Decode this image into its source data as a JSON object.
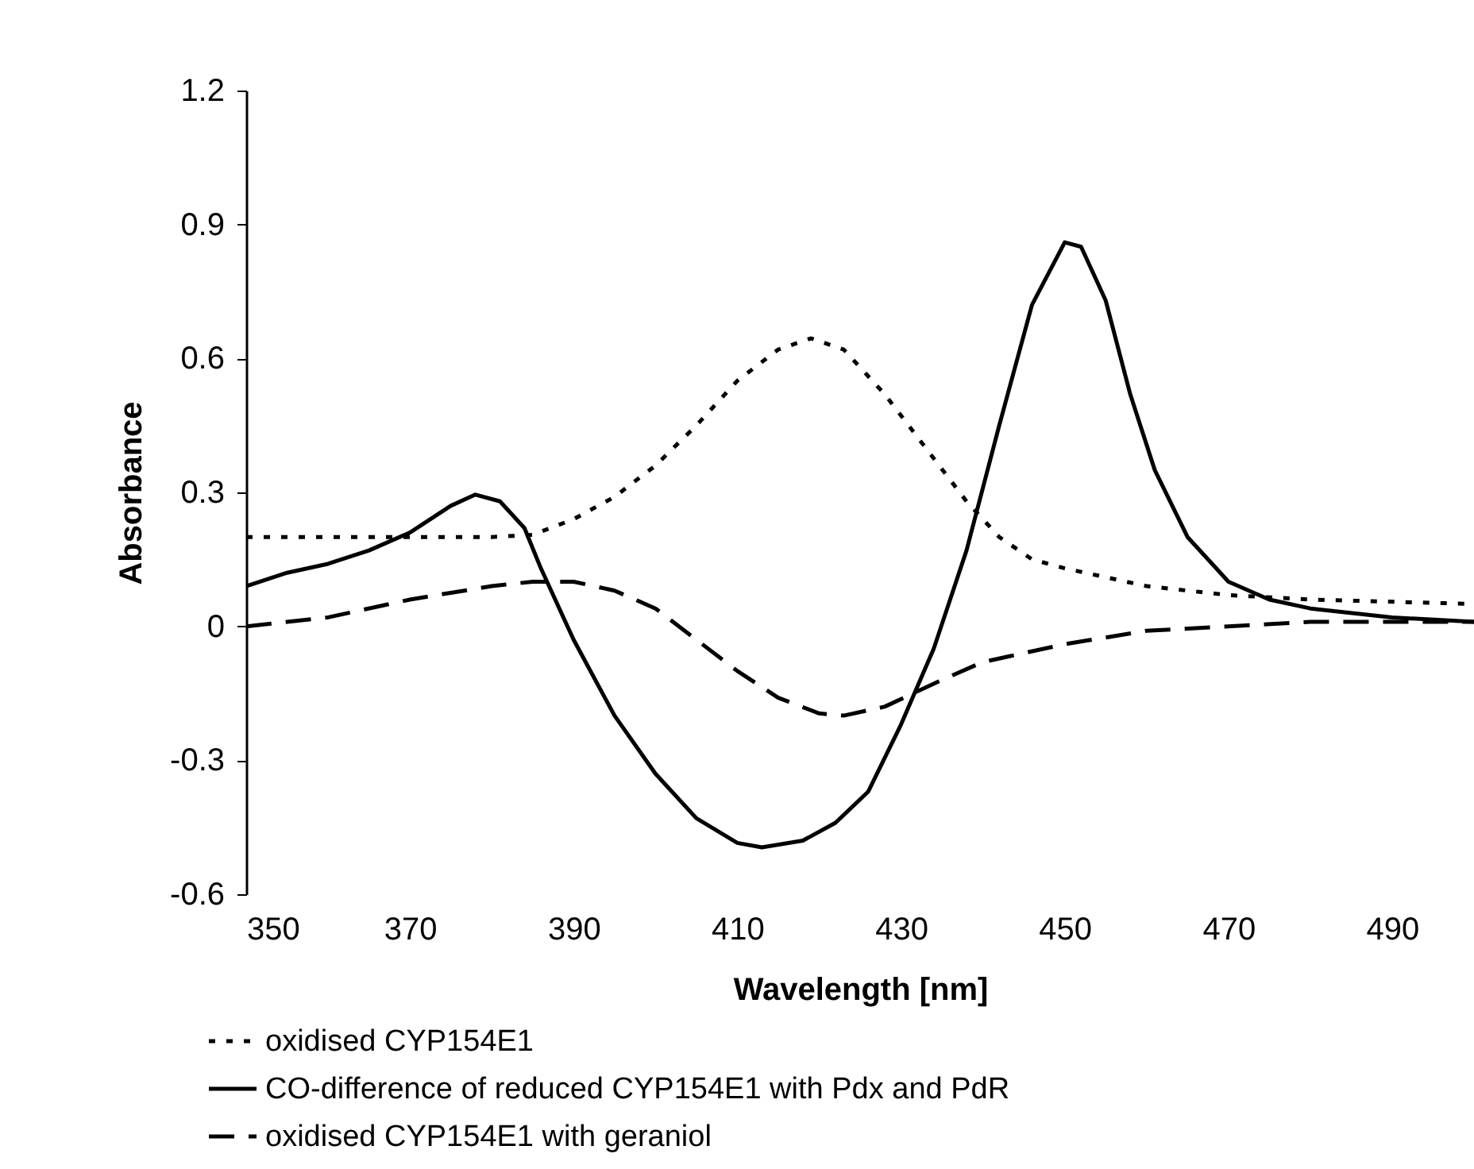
{
  "chart_data": {
    "type": "line",
    "xlabel": "Wavelength [nm]",
    "ylabel": "Absorbance",
    "xlim": [
      350,
      500
    ],
    "xticks": [
      350,
      370,
      390,
      410,
      430,
      450,
      470,
      490
    ],
    "ylim": [
      -0.6,
      1.2
    ],
    "yticks": [
      -0.6,
      -0.3,
      0,
      0.3,
      0.6,
      0.9,
      1.2
    ],
    "grid": false,
    "legend": "bottom",
    "series": [
      {
        "name": "oxidised CYP154E1",
        "color": "#000000",
        "line_style": "dotted",
        "x": [
          350,
          380,
          385,
          390,
          395,
          400,
          405,
          410,
          415,
          419,
          423,
          428,
          433,
          438,
          442,
          446,
          450,
          460,
          470,
          480,
          500
        ],
        "values": [
          0.2,
          0.2,
          0.205,
          0.24,
          0.29,
          0.36,
          0.45,
          0.55,
          0.62,
          0.645,
          0.62,
          0.52,
          0.4,
          0.28,
          0.2,
          0.15,
          0.13,
          0.09,
          0.07,
          0.06,
          0.05
        ]
      },
      {
        "name": "CO-difference of reduced CYP154E1 with Pdx and PdR",
        "color": "#000000",
        "line_style": "solid",
        "x": [
          350,
          355,
          360,
          365,
          370,
          375,
          378,
          381,
          384,
          386,
          388,
          390,
          395,
          400,
          405,
          410,
          413,
          418,
          422,
          426,
          430,
          434,
          438,
          442,
          446,
          450,
          452,
          455,
          458,
          461,
          465,
          470,
          475,
          480,
          490,
          500
        ],
        "values": [
          0.09,
          0.12,
          0.14,
          0.17,
          0.21,
          0.27,
          0.295,
          0.28,
          0.22,
          0.13,
          0.05,
          -0.03,
          -0.2,
          -0.33,
          -0.43,
          -0.485,
          -0.495,
          -0.48,
          -0.44,
          -0.37,
          -0.22,
          -0.05,
          0.17,
          0.45,
          0.72,
          0.86,
          0.85,
          0.73,
          0.52,
          0.35,
          0.2,
          0.1,
          0.06,
          0.04,
          0.02,
          0.01
        ]
      },
      {
        "name": "oxidised CYP154E1 with geraniol",
        "color": "#000000",
        "line_style": "dashed",
        "x": [
          350,
          360,
          370,
          380,
          385,
          390,
          395,
          400,
          405,
          410,
          415,
          420,
          423,
          428,
          435,
          440,
          450,
          460,
          470,
          480,
          490,
          500
        ],
        "values": [
          0,
          0.02,
          0.06,
          0.09,
          0.1,
          0.1,
          0.08,
          0.04,
          -0.03,
          -0.1,
          -0.16,
          -0.195,
          -0.2,
          -0.18,
          -0.12,
          -0.08,
          -0.04,
          -0.01,
          0,
          0.01,
          0.01,
          0.01
        ]
      }
    ]
  }
}
